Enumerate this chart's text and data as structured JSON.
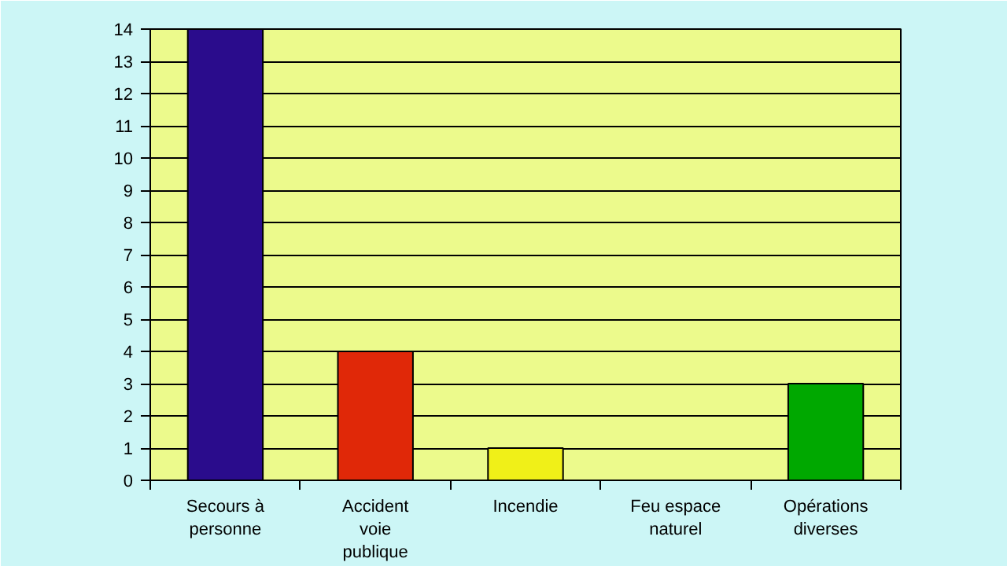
{
  "chart_data": {
    "type": "bar",
    "categories": [
      "Secours à\npersonne",
      "Accident\nvoie\npublique",
      "Incendie",
      "Feu espace\nnaturel",
      "Opérations\ndiverses"
    ],
    "values": [
      14,
      4,
      1,
      0,
      3
    ],
    "colors": [
      "#2a0c8c",
      "#e02808",
      "#f0f018",
      null,
      "#00a800"
    ],
    "ylim": [
      0,
      14
    ],
    "yticks": [
      0,
      1,
      2,
      3,
      4,
      5,
      6,
      7,
      8,
      9,
      10,
      11,
      12,
      13,
      14
    ],
    "grid": "y"
  }
}
